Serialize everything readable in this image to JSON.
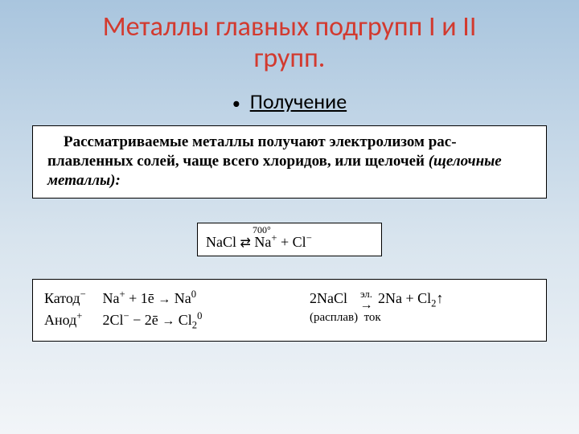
{
  "title_color": "#d23a2f",
  "text_color": "#000000",
  "title_line1": "Металлы главных подгрупп I и II",
  "title_line2": "групп.",
  "bullet": "Получение",
  "box1": {
    "lead": "Рассматриваемые металлы получают электролизом рас-",
    "body": "плавленных солей, чаще всего хлоридов, или щелочей ",
    "trail": "(щелочные металлы):"
  },
  "box2": {
    "anno": "700°",
    "lhs": "NaCl",
    "arrow": "⇄",
    "rhs_a": "Na",
    "rhs_a_sup": "+",
    "plus": " + ",
    "rhs_b": "Cl",
    "rhs_b_sup": "−"
  },
  "box3": {
    "cathode_label": "Катод",
    "cathode_sup": "−",
    "anode_label": "Анод",
    "anode_sup": "+",
    "cat_eq_l": "Na",
    "cat_eq_l_sup": "+",
    "cat_eq_mid": " + 1ē ",
    "arr": "→",
    "cat_eq_r": " Na",
    "cat_eq_r_sup": "0",
    "an_eq_l": "2Cl",
    "an_eq_l_sup": "−",
    "an_eq_mid": " − 2ē ",
    "an_eq_r": " Cl",
    "an_eq_r_sub": "2",
    "an_eq_r_sup": "0",
    "right_l": "2NaCl",
    "right_top": "эл.",
    "right_bot": "ток",
    "right_paren": "(расплав)",
    "right_r1": " 2Na + Cl",
    "right_r1_sub": "2",
    "right_r1_up": "↑"
  }
}
